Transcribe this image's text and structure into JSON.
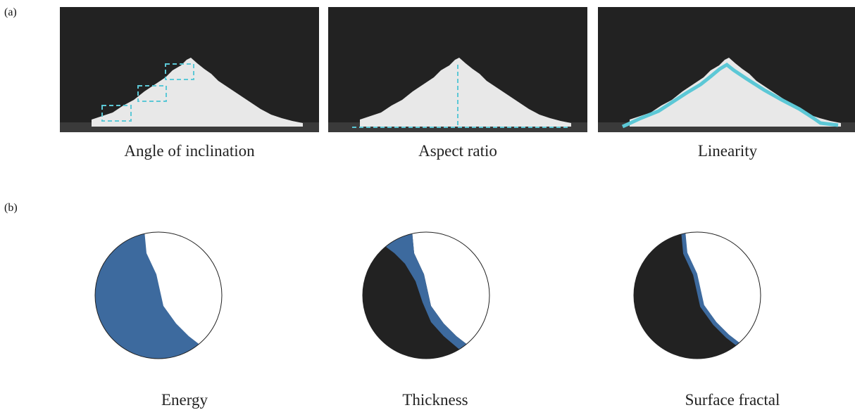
{
  "panels": [
    {
      "label": "(a)",
      "captions": [
        "Angle of  inclination",
        "Aspect ratio",
        "Linearity"
      ]
    },
    {
      "label": "(b)",
      "captions": [
        "Energy",
        "Thickness",
        "Surface fractal"
      ]
    }
  ]
}
